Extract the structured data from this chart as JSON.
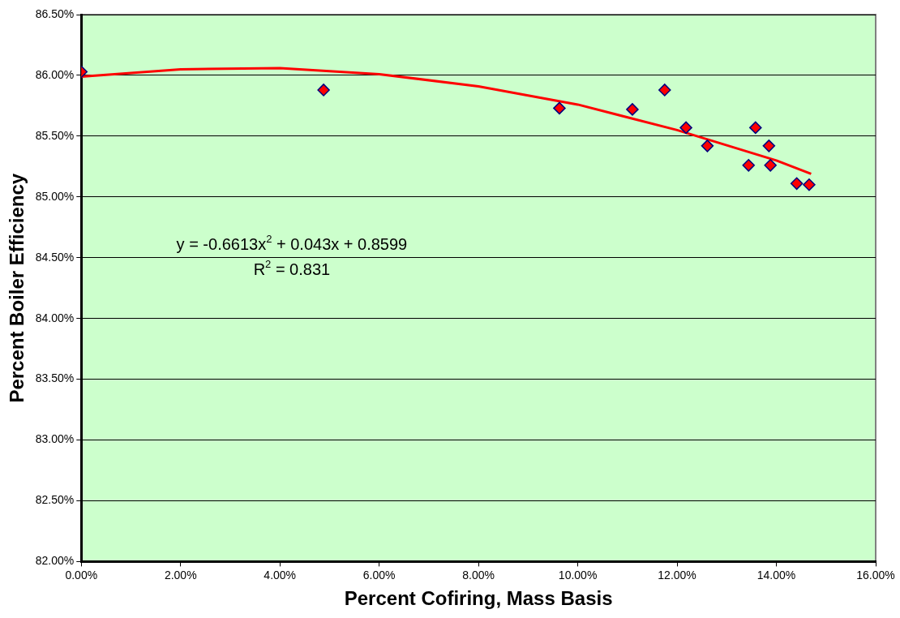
{
  "chart_data": {
    "type": "scatter",
    "xlabel": "Percent Cofiring, Mass Basis",
    "ylabel": "Percent Boiler Efficiency",
    "xlim": [
      0,
      16
    ],
    "xticks": [
      {
        "value": 0,
        "label": "0.00%"
      },
      {
        "value": 2,
        "label": "2.00%"
      },
      {
        "value": 4,
        "label": "4.00%"
      },
      {
        "value": 6,
        "label": "6.00%"
      },
      {
        "value": 8,
        "label": "8.00%"
      },
      {
        "value": 10,
        "label": "10.00%"
      },
      {
        "value": 12,
        "label": "12.00%"
      },
      {
        "value": 14,
        "label": "14.00%"
      },
      {
        "value": 16,
        "label": "16.00%"
      }
    ],
    "ylim": [
      82,
      86.5
    ],
    "yticks": [
      {
        "value": 82,
        "label": "82.00%"
      },
      {
        "value": 82.5,
        "label": "82.50%"
      },
      {
        "value": 83,
        "label": "83.00%"
      },
      {
        "value": 83.5,
        "label": "83.50%"
      },
      {
        "value": 84,
        "label": "84.00%"
      },
      {
        "value": 84.5,
        "label": "84.50%"
      },
      {
        "value": 85,
        "label": "85.00%"
      },
      {
        "value": 85.5,
        "label": "85.50%"
      },
      {
        "value": 86,
        "label": "86.00%"
      },
      {
        "value": 86.5,
        "label": "86.50%"
      }
    ],
    "grid": "y",
    "legend": false,
    "marker": "diamond",
    "series": [
      {
        "color": "#ff0000",
        "x": [
          0,
          4.88,
          9.63,
          11.1,
          11.75,
          12.18,
          12.61,
          13.58,
          13.44,
          13.85,
          13.88,
          14.41,
          14.66
        ],
        "values": [
          86.03,
          85.88,
          85.73,
          85.72,
          85.88,
          85.57,
          85.42,
          85.57,
          85.26,
          85.42,
          85.26,
          85.11,
          85.1
        ]
      },
      {
        "type": "line",
        "color": "#ff0000",
        "marker": "none",
        "x": [
          0,
          2,
          4,
          6,
          8,
          10,
          12,
          14,
          14.7
        ],
        "values": [
          85.99,
          86.05,
          86.06,
          86.01,
          85.91,
          85.76,
          85.55,
          85.3,
          85.19
        ]
      }
    ],
    "annotations": [
      "y = -0.6613x$^{2}$ + 0.043x + 0.8599",
      "R$^{2}$ = 0.831"
    ]
  }
}
